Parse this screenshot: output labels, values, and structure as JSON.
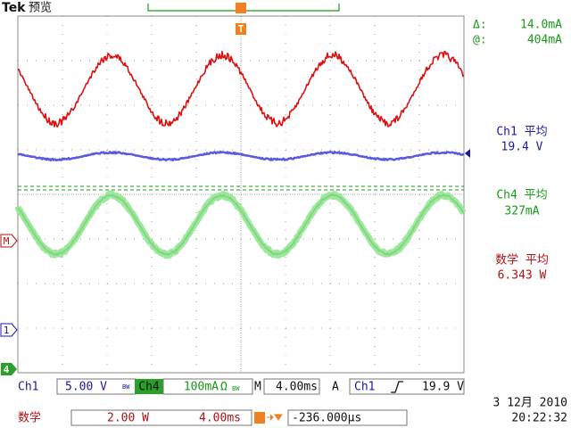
{
  "header": {
    "brand": "Tek",
    "mode": "预览"
  },
  "cursor": {
    "delta_label": "Δ:",
    "delta": "14.0mA",
    "at_label": "@:",
    "at": "404mA"
  },
  "measurements": [
    {
      "label": "Ch1 平均",
      "value": "19.4 V"
    },
    {
      "label": "Ch4 平均",
      "value": "327mA"
    },
    {
      "label": "数学 平均",
      "value": "6.343 W"
    }
  ],
  "markers": {
    "math": "M",
    "ch1": "1",
    "ch4": "4",
    "trigger": "T"
  },
  "status": {
    "ch1": {
      "label": "Ch1",
      "scale": "5.00 V",
      "bw": "BW"
    },
    "ch4": {
      "label": "Ch4",
      "scale": "100mA",
      "unit": "Ω",
      "bw": "BW"
    },
    "timebase": {
      "label": "M",
      "scale": "4.00ms"
    },
    "trigger": {
      "mode": "A",
      "source": "Ch1",
      "level": "19.9 V"
    },
    "math": {
      "label": "数学",
      "scale": "2.00 W",
      "time": "4.00ms"
    },
    "position": "-236.000µs",
    "date": "3 12月 2010",
    "time": "20:22:32"
  }
}
